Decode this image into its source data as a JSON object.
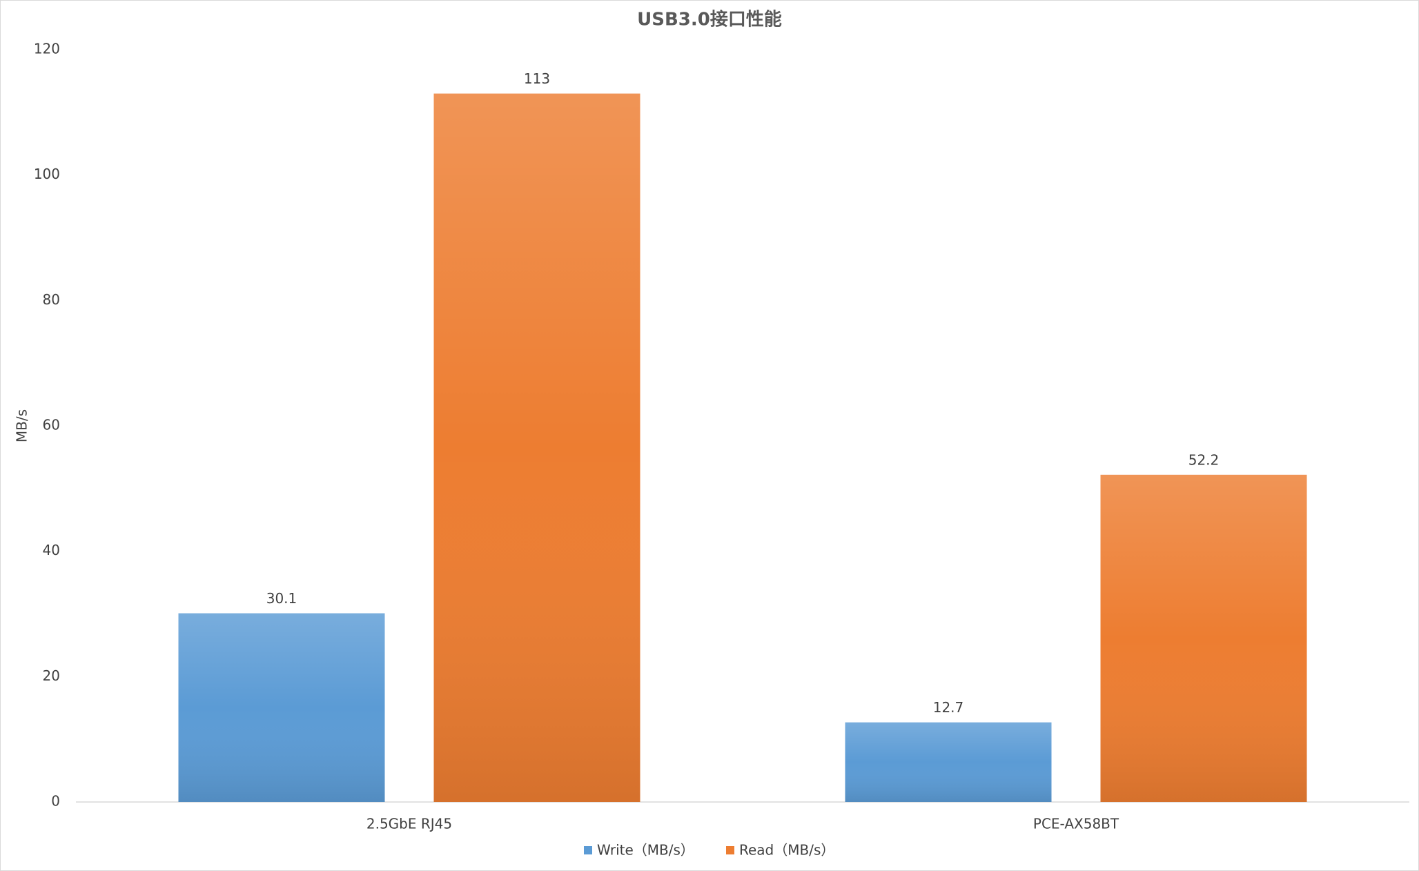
{
  "chart_data": {
    "type": "bar",
    "title": "USB3.0接口性能",
    "y_label": "MB/s",
    "categories": [
      "2.5GbE RJ45",
      "PCE-AX58BT"
    ],
    "series": [
      {
        "name": "Write（MB/s）",
        "color": "#5b9bd5",
        "values": [
          30.1,
          12.7
        ]
      },
      {
        "name": "Read（MB/s）",
        "color": "#ed7d31",
        "values": [
          113,
          52.2
        ]
      }
    ],
    "ylim": [
      0,
      120
    ],
    "yticks": [
      0,
      20,
      40,
      60,
      80,
      100,
      120
    ],
    "grid": false,
    "legend": "bottom"
  }
}
